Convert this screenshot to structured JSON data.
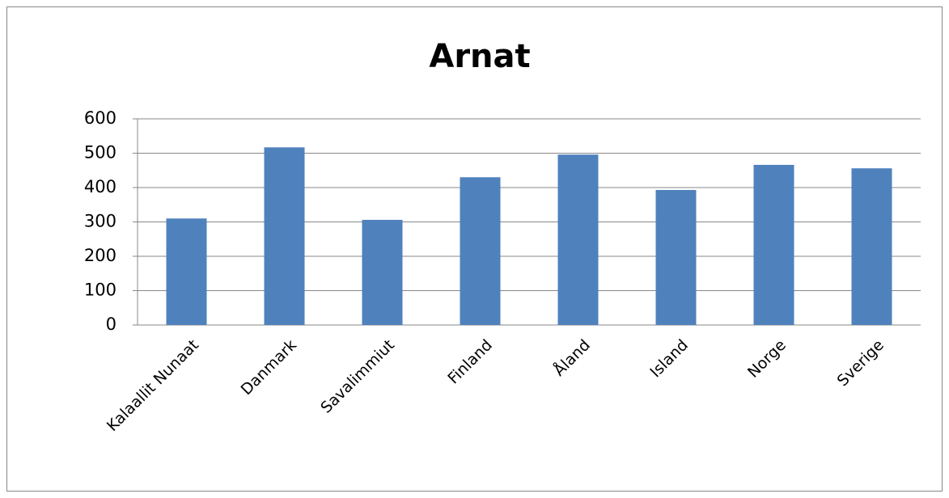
{
  "chart_data": {
    "type": "bar",
    "title": "Arnat",
    "categories": [
      "Kalaallit Nunaat",
      "Danmark",
      "Savalimmiut",
      "Finland",
      "Åland",
      "Island",
      "Norge",
      "Sverige"
    ],
    "values": [
      310,
      517,
      306,
      430,
      496,
      393,
      466,
      456
    ],
    "color": "#4f81bd",
    "ylim": [
      0,
      600
    ],
    "yticks": [
      0,
      100,
      200,
      300,
      400,
      500,
      600
    ],
    "grid": true
  }
}
